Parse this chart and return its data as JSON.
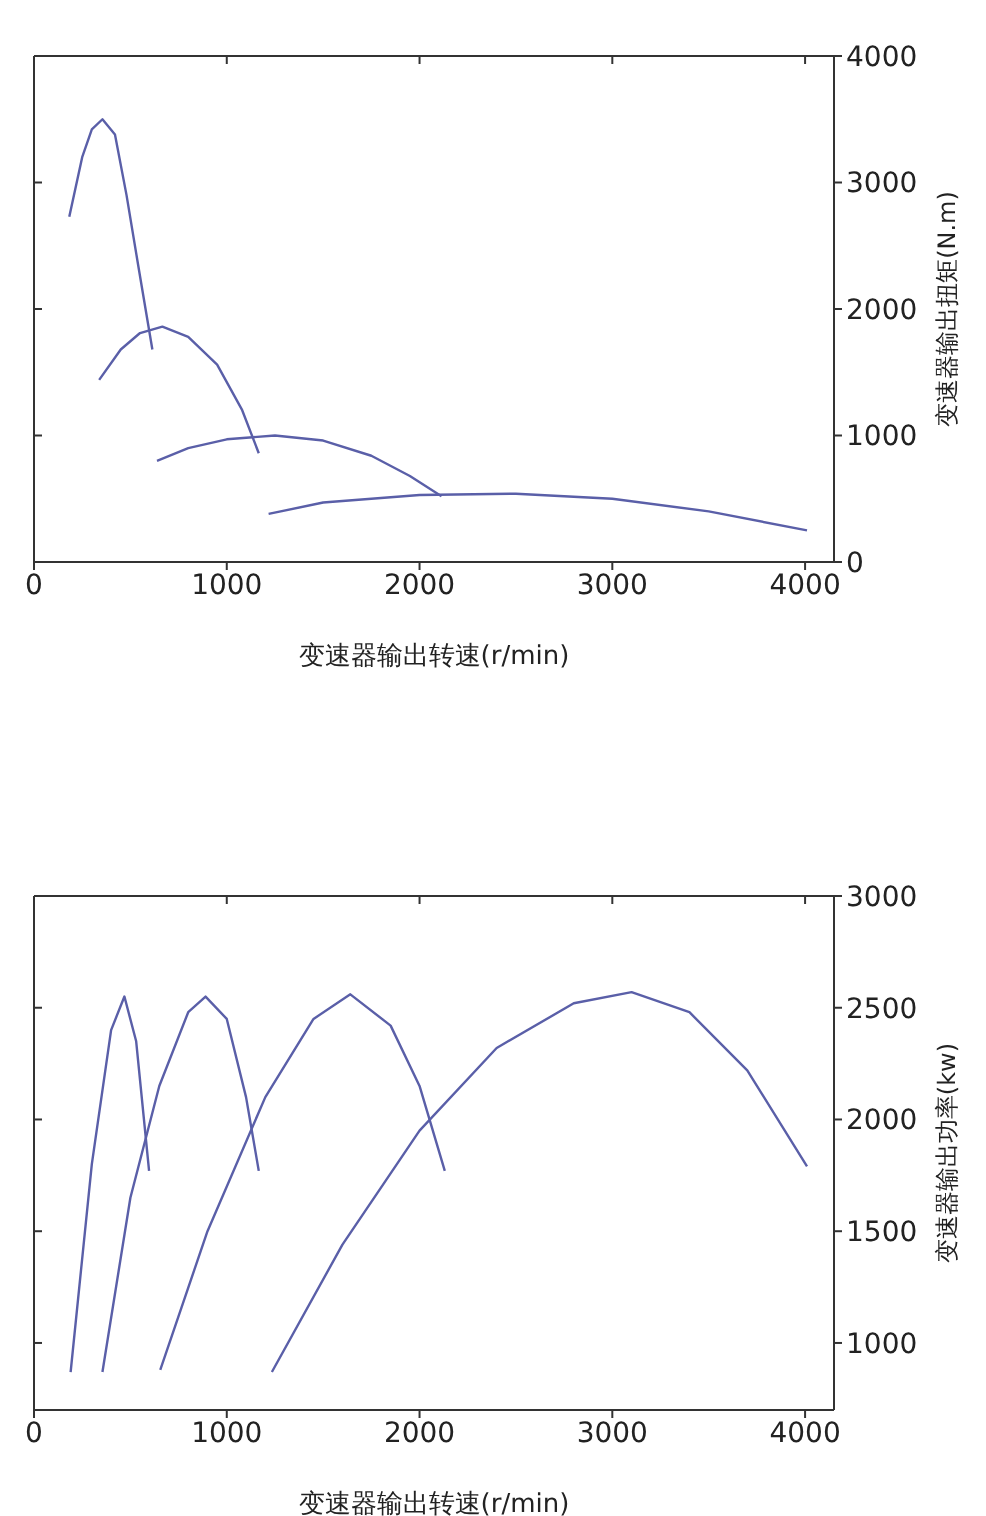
{
  "chart_data": [
    {
      "type": "line",
      "xlabel": "变速器输出转速(r/min)",
      "ylabel": "变速器输出扭矩(N.m)",
      "xlim": [
        0,
        4150
      ],
      "xticks": [
        0,
        1000,
        2000,
        3000,
        4000
      ],
      "ylim": [
        0,
        4000
      ],
      "yticks": [
        0,
        1000,
        2000,
        3000,
        4000
      ],
      "marker": "none",
      "line_style": "solid",
      "series": [
        {
          "color": "#5a5fa8",
          "x": [
            183,
            250,
            300,
            355,
            420,
            480,
            540,
            614
          ],
          "values": [
            2730,
            3200,
            3420,
            3500,
            3380,
            2900,
            2350,
            1680
          ]
        },
        {
          "color": "#5a5fa8",
          "x": [
            338,
            450,
            550,
            666,
            800,
            950,
            1080,
            1166
          ],
          "values": [
            1440,
            1680,
            1810,
            1860,
            1780,
            1560,
            1200,
            860
          ]
        },
        {
          "color": "#5a5fa8",
          "x": [
            638,
            800,
            1000,
            1250,
            1500,
            1750,
            1950,
            2114
          ],
          "values": [
            800,
            900,
            970,
            1000,
            960,
            840,
            680,
            520
          ]
        },
        {
          "color": "#5a5fa8",
          "x": [
            1217,
            1500,
            2000,
            2500,
            3000,
            3500,
            4010
          ],
          "values": [
            380,
            470,
            530,
            540,
            500,
            400,
            250
          ]
        }
      ]
    },
    {
      "type": "line",
      "xlabel": "变速器输出转速(r/min)",
      "ylabel": "变速器输出功率(kw)",
      "xlim": [
        0,
        4150
      ],
      "xticks": [
        0,
        1000,
        2000,
        3000,
        4000
      ],
      "ylim": [
        700,
        3000
      ],
      "yticks": [
        1000,
        1500,
        2000,
        2500,
        3000
      ],
      "marker": "none",
      "line_style": "solid",
      "series": [
        {
          "color": "#5a5fa8",
          "x": [
            190,
            300,
            400,
            469,
            530,
            597
          ],
          "values": [
            870,
            1800,
            2400,
            2550,
            2350,
            1770
          ]
        },
        {
          "color": "#5a5fa8",
          "x": [
            355,
            500,
            650,
            800,
            890,
            1000,
            1100,
            1166
          ],
          "values": [
            870,
            1650,
            2150,
            2480,
            2550,
            2450,
            2100,
            1770
          ]
        },
        {
          "color": "#5a5fa8",
          "x": [
            655,
            900,
            1200,
            1450,
            1641,
            1850,
            2000,
            2131
          ],
          "values": [
            880,
            1500,
            2100,
            2450,
            2560,
            2420,
            2150,
            1770
          ]
        },
        {
          "color": "#5a5fa8",
          "x": [
            1234,
            1600,
            2000,
            2400,
            2800,
            3100,
            3400,
            3700,
            4010
          ],
          "values": [
            870,
            1440,
            1950,
            2320,
            2520,
            2570,
            2480,
            2220,
            1790
          ]
        }
      ]
    }
  ]
}
